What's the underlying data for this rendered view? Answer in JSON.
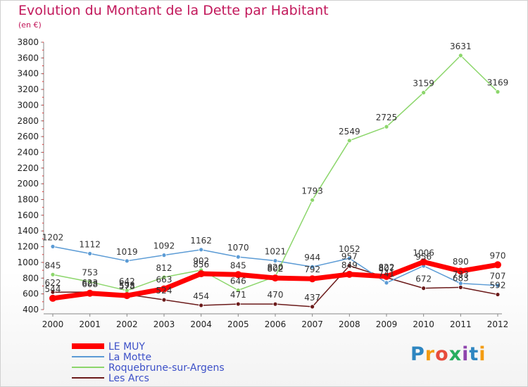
{
  "title": "Evolution du Montant de la Dette par Habitant",
  "unit": "(en €)",
  "logo": "Proxiti",
  "chart_data": {
    "type": "line",
    "title": "Evolution du Montant de la Dette par Habitant",
    "ylabel": "(en €)",
    "xlabel": "",
    "ylim": [
      400,
      3800
    ],
    "yticks": [
      400,
      600,
      800,
      1000,
      1200,
      1400,
      1600,
      1800,
      2000,
      2200,
      2400,
      2600,
      2800,
      3000,
      3200,
      3400,
      3600,
      3800
    ],
    "x": [
      "2000",
      "2001",
      "2002",
      "2003",
      "2004",
      "2005",
      "2006",
      "2007",
      "2008",
      "2009",
      "2010",
      "2011",
      "2012"
    ],
    "grid": false,
    "legend_position": "bottom-left",
    "series": [
      {
        "name": "LE MUY",
        "color": "#ff0000",
        "values": [
          544,
          608,
          578,
          663,
          856,
          845,
          802,
          792,
          849,
          822,
          1006,
          890,
          970
        ]
      },
      {
        "name": "La Motte",
        "color": "#5b9bd5",
        "values": [
          1202,
          1112,
          1019,
          1092,
          1162,
          1070,
          1021,
          944,
          1052,
          741,
          956,
          733,
          707
        ]
      },
      {
        "name": "Roquebrune-sur-Argens",
        "color": "#8cd66b",
        "values": [
          845,
          753,
          642,
          812,
          902,
          646,
          820,
          1793,
          2549,
          2725,
          3159,
          3631,
          3169
        ]
      },
      {
        "name": "Les Arcs",
        "color": "#6b1a1a",
        "values": [
          622,
          623,
          593,
          524,
          454,
          471,
          470,
          437,
          957,
          807,
          672,
          683,
          592
        ]
      }
    ]
  }
}
